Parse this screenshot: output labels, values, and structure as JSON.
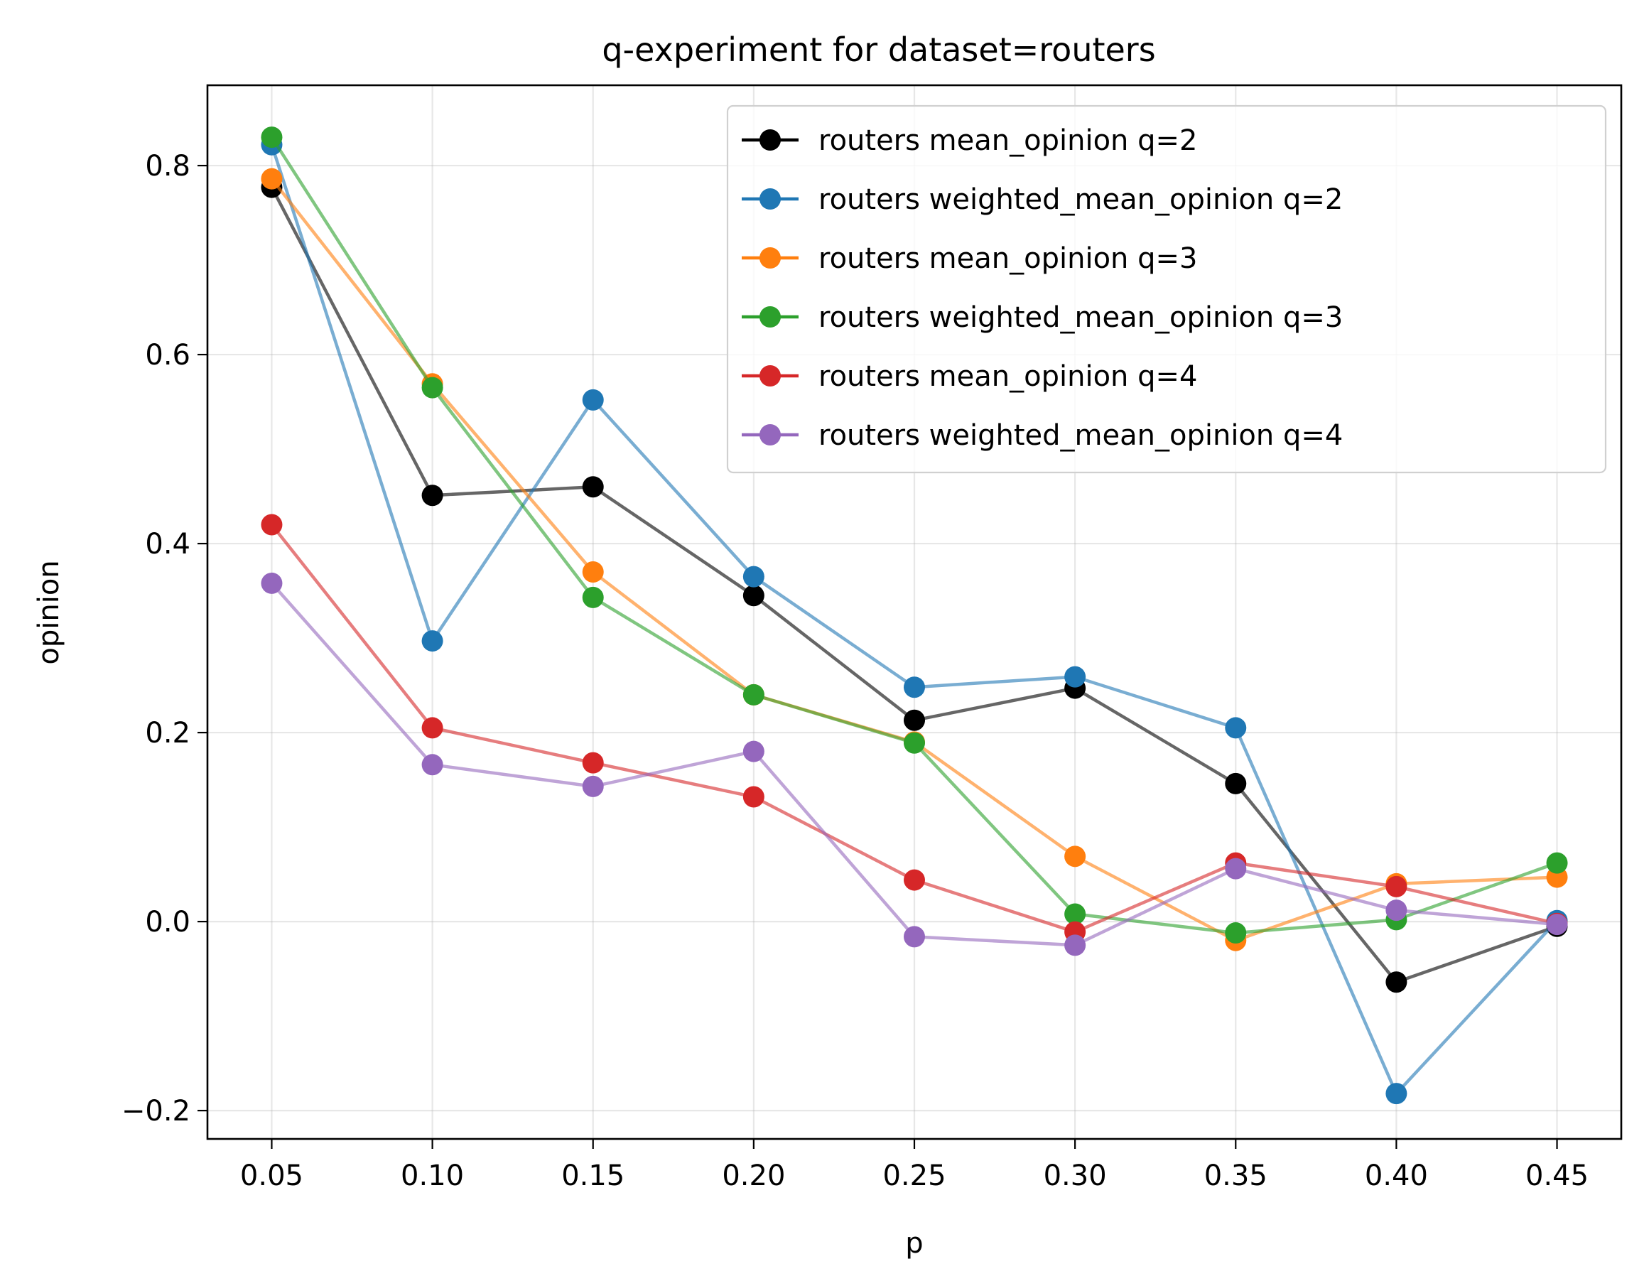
{
  "chart_data": {
    "type": "line",
    "title": "q-experiment for dataset=routers",
    "xlabel": "p",
    "ylabel": "opinion",
    "x": [
      0.05,
      0.1,
      0.15,
      0.2,
      0.25,
      0.3,
      0.35,
      0.4,
      0.45
    ],
    "xticks": [
      "0.05",
      "0.10",
      "0.15",
      "0.20",
      "0.25",
      "0.30",
      "0.35",
      "0.40",
      "0.45"
    ],
    "yticks": [
      "−0.2",
      "0.0",
      "0.2",
      "0.4",
      "0.6",
      "0.8"
    ],
    "ytick_values": [
      -0.2,
      0.0,
      0.2,
      0.4,
      0.6,
      0.8
    ],
    "xlim": [
      0.03,
      0.47
    ],
    "ylim": [
      -0.23,
      0.885
    ],
    "grid": true,
    "legend_position": "top-right",
    "series": [
      {
        "name": "routers mean_opinion q=2",
        "color": "#000000",
        "values": [
          0.777,
          0.451,
          0.46,
          0.345,
          0.213,
          0.247,
          0.146,
          -0.064,
          -0.005
        ]
      },
      {
        "name": "routers weighted_mean_opinion q=2",
        "color": "#1f77b4",
        "values": [
          0.822,
          0.297,
          0.552,
          0.365,
          0.248,
          0.259,
          0.205,
          -0.182,
          0.001
        ]
      },
      {
        "name": "routers mean_opinion q=3",
        "color": "#ff7f0e",
        "values": [
          0.786,
          0.569,
          0.37,
          0.24,
          0.19,
          0.069,
          -0.02,
          0.04,
          0.047
        ]
      },
      {
        "name": "routers weighted_mean_opinion q=3",
        "color": "#2ca02c",
        "values": [
          0.83,
          0.565,
          0.343,
          0.24,
          0.189,
          0.008,
          -0.012,
          0.002,
          0.062
        ]
      },
      {
        "name": "routers mean_opinion q=4",
        "color": "#d62728",
        "values": [
          0.42,
          0.205,
          0.168,
          0.132,
          0.044,
          -0.011,
          0.062,
          0.037,
          -0.002
        ]
      },
      {
        "name": "routers weighted_mean_opinion q=4",
        "color": "#9467bd",
        "values": [
          0.358,
          0.166,
          0.143,
          0.18,
          -0.016,
          -0.025,
          0.056,
          0.012,
          -0.003
        ]
      }
    ]
  }
}
